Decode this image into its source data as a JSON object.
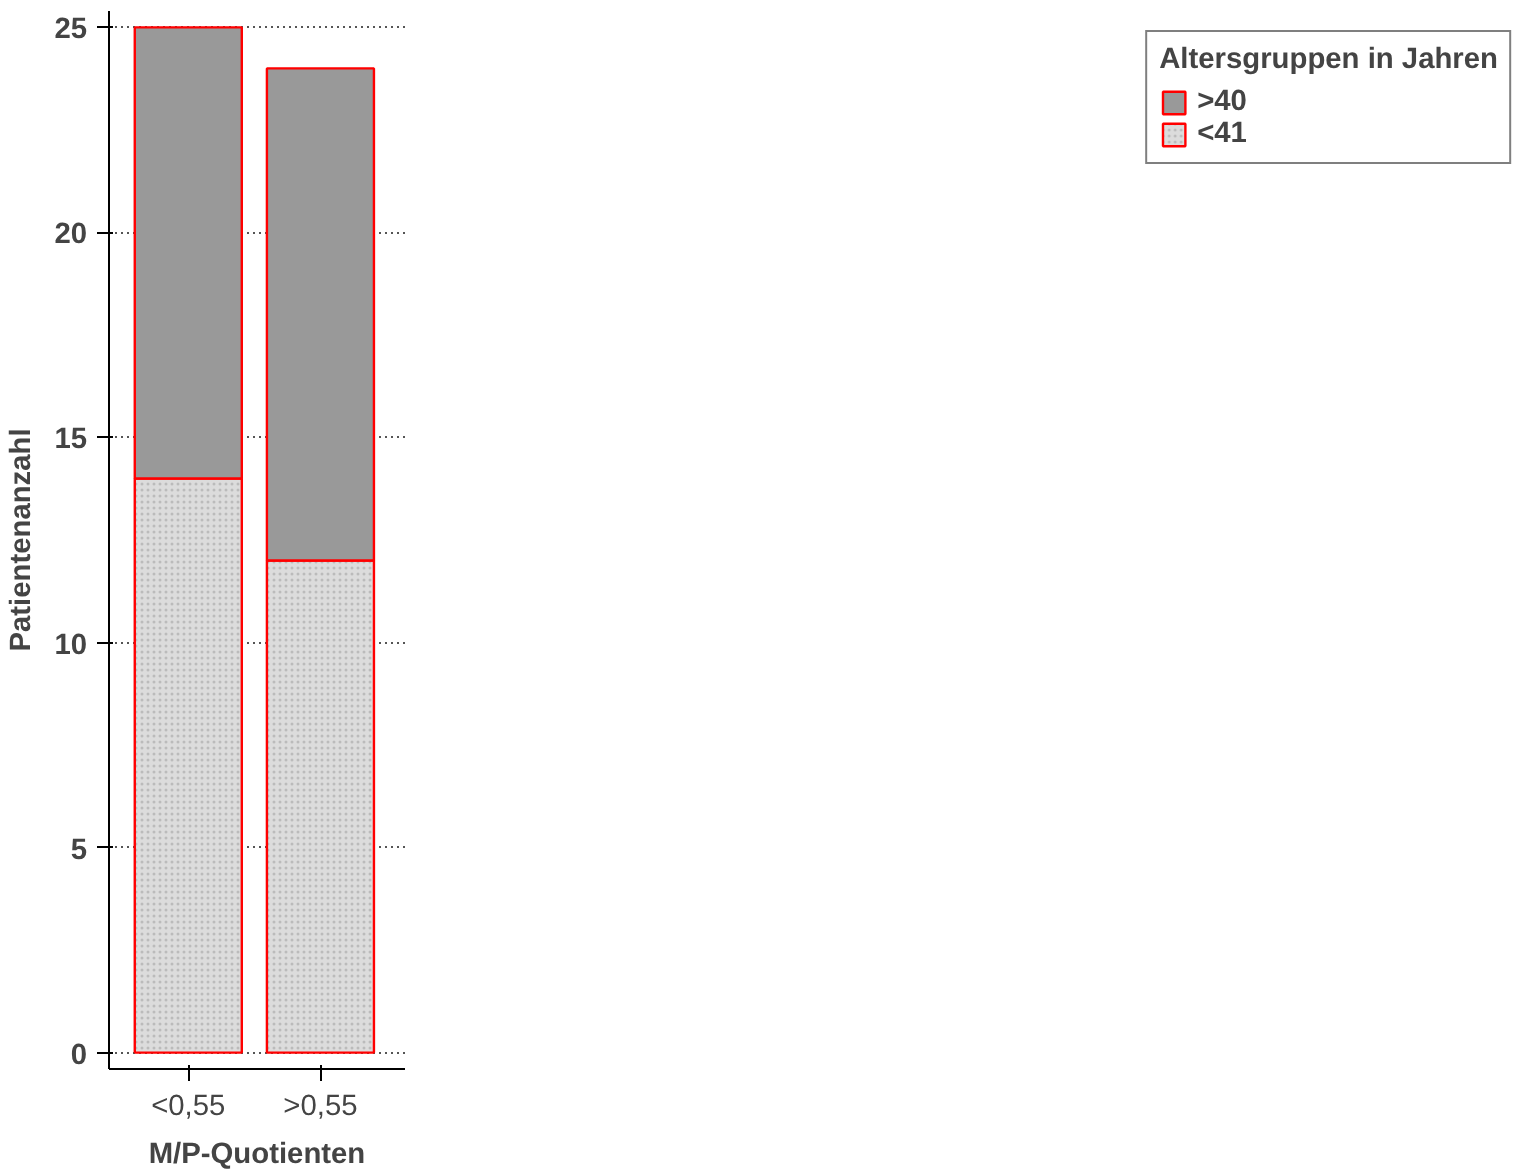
{
  "chart_data": {
    "type": "bar",
    "stacked": true,
    "xlabel": "M/P-Quotienten",
    "ylabel": "Patientenanzahl",
    "legend_title": "Altersgruppen in Jahren",
    "categories": [
      "<0,55",
      ">0,55"
    ],
    "series": [
      {
        "name": "<41",
        "color": "#dcdcdc",
        "values": [
          14,
          12
        ]
      },
      {
        "name": ">40",
        "color": "#999999",
        "values": [
          11,
          12
        ]
      }
    ],
    "ylim": [
      -0.4,
      25.4
    ],
    "yticks": [
      0,
      5,
      10,
      15,
      20,
      25
    ],
    "grid": "y",
    "legend": "right"
  }
}
